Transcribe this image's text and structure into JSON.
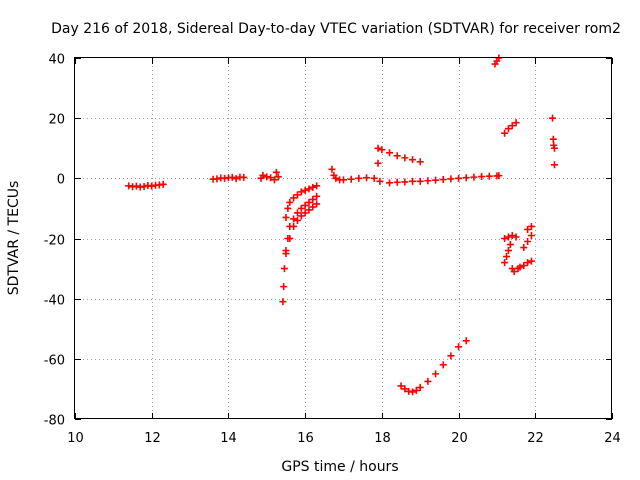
{
  "chart_data": {
    "type": "scatter",
    "title": "Day 216 of 2018, Sidereal Day-to-day VTEC variation (SDTVAR) for receiver rom2",
    "xlabel": "GPS time / hours",
    "ylabel": "SDTVAR / TECUs",
    "xlim": [
      10,
      24
    ],
    "ylim": [
      -80,
      40
    ],
    "xticks": [
      10,
      12,
      14,
      16,
      18,
      20,
      22,
      24
    ],
    "yticks": [
      -80,
      -60,
      -40,
      -20,
      0,
      20,
      40
    ],
    "grid": true,
    "marker": "plus",
    "color": "#ff0000",
    "series": [
      {
        "x": [
          11.4,
          11.5,
          11.6,
          11.7,
          11.8,
          11.9,
          12.0,
          12.1,
          12.2,
          12.3,
          13.6,
          13.7,
          13.8,
          13.9,
          14.0,
          14.1,
          14.2,
          14.3,
          14.4,
          14.85,
          14.9,
          15.0,
          15.1,
          15.2,
          15.25,
          15.3,
          15.42,
          15.44,
          15.46,
          15.5,
          15.55,
          15.6,
          15.7,
          15.8,
          15.9,
          16.0,
          16.1,
          16.2,
          16.3,
          15.5,
          15.55,
          15.6,
          15.7,
          15.8,
          15.9,
          16.0,
          16.1,
          16.2,
          16.3,
          15.5,
          15.6,
          15.7,
          15.8,
          15.9,
          16.0,
          16.1,
          16.2,
          16.3,
          16.7,
          16.75,
          16.8,
          16.9,
          17.0,
          17.2,
          17.4,
          17.6,
          17.8,
          17.9,
          17.95,
          18.2,
          18.4,
          18.6,
          18.8,
          19.0,
          19.2,
          19.4,
          19.6,
          19.8,
          20.0,
          20.2,
          20.4,
          20.6,
          20.8,
          21.0,
          21.05,
          18.0,
          18.2,
          18.4,
          18.6,
          18.8,
          19.0,
          17.9,
          18.5,
          18.6,
          18.7,
          18.8,
          18.9,
          19.0,
          19.2,
          19.4,
          19.6,
          19.8,
          20.0,
          20.2,
          20.95,
          21.0,
          21.05,
          21.2,
          21.3,
          21.4,
          21.5,
          21.2,
          21.3,
          21.4,
          21.5,
          21.2,
          21.25,
          21.3,
          21.35,
          21.4,
          21.45,
          21.55,
          21.6,
          21.7,
          21.8,
          21.9,
          21.8,
          21.9,
          21.7,
          21.8,
          21.9,
          22.45,
          22.47,
          22.48,
          22.5,
          22.5
        ],
        "y": [
          -2.5,
          -2.8,
          -2.6,
          -2.9,
          -2.7,
          -2.4,
          -2.6,
          -2.3,
          -2.2,
          -2.0,
          -0.3,
          -0.2,
          0.1,
          0.0,
          0.2,
          0.3,
          -0.1,
          0.4,
          0.3,
          0.0,
          1.0,
          0.5,
          0.2,
          -0.5,
          2.0,
          0.5,
          -41.0,
          -36.0,
          -30.0,
          -24.0,
          -20.0,
          -16.0,
          -13.5,
          -11.5,
          -10.0,
          -9.0,
          -8.0,
          -7.0,
          -6.0,
          -13.0,
          -10.0,
          -8.0,
          -6.5,
          -5.5,
          -4.5,
          -4.0,
          -3.5,
          -3.0,
          -2.5,
          -25.0,
          -20.0,
          -16.0,
          -14.0,
          -12.5,
          -11.5,
          -10.5,
          -9.5,
          -8.5,
          3.0,
          1.0,
          0.0,
          -0.5,
          -0.5,
          -0.3,
          0.0,
          0.2,
          0.0,
          5.0,
          -1.0,
          -1.5,
          -1.3,
          -1.2,
          -1.0,
          -1.0,
          -0.8,
          -0.6,
          -0.4,
          -0.2,
          0.0,
          0.2,
          0.4,
          0.6,
          0.7,
          0.8,
          0.9,
          9.5,
          8.5,
          7.5,
          6.8,
          6.2,
          5.5,
          10.0,
          -69.0,
          -70.0,
          -70.8,
          -71.0,
          -70.5,
          -69.5,
          -67.5,
          -65.0,
          -62.0,
          -59.0,
          -56.0,
          -54.0,
          38.0,
          39.0,
          40.0,
          15.0,
          16.5,
          17.5,
          18.5,
          -20.0,
          -19.5,
          -19.0,
          -19.5,
          -28.0,
          -26.0,
          -24.0,
          -22.0,
          -30.0,
          -31.0,
          -30.0,
          -29.5,
          -29.0,
          -28.0,
          -27.5,
          -17.0,
          -16.0,
          -23.0,
          -21.0,
          -19.0,
          20.0,
          13.0,
          11.0,
          10.0,
          4.5
        ]
      }
    ]
  }
}
